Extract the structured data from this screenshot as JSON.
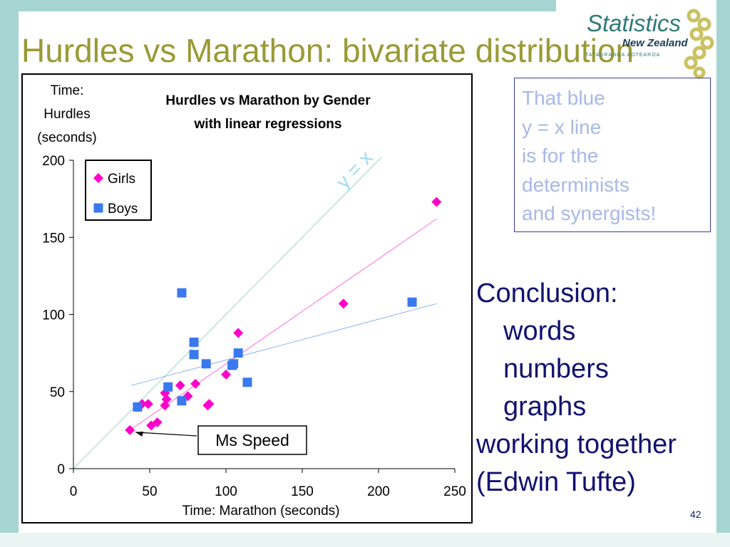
{
  "slide": {
    "title": "Hurdles vs Marathon: bivariate distribution",
    "page_number": "42",
    "band_color": "#a6d4d2",
    "title_color": "#9a9a35"
  },
  "logo": {
    "word": "Statistics",
    "sub": "New Zealand",
    "maori": "TATAURANGA AOTEAROA",
    "icon": "chain-link-logo-icon"
  },
  "note": {
    "lines": [
      "That blue",
      "y = x line",
      "is for the",
      "determinists",
      "and synergists!"
    ],
    "color": "#a8b8e8"
  },
  "conclusion": {
    "lines": [
      "Conclusion:",
      "words",
      "numbers",
      "graphs",
      "working together",
      "(Edwin Tufte)"
    ],
    "color": "#111170"
  },
  "chart_data": {
    "type": "scatter",
    "title": "Hurdles vs Marathon by Gender with linear regressions",
    "title_lines": [
      "Hurdles vs Marathon by Gender",
      "with linear regressions"
    ],
    "ylabel_lines": [
      "Time:",
      "Hurdles",
      "(seconds)"
    ],
    "xlabel": "Time: Marathon (seconds)",
    "xlim": [
      0,
      250
    ],
    "ylim": [
      0,
      200
    ],
    "xticks": [
      0,
      50,
      100,
      150,
      200,
      250
    ],
    "yticks": [
      0,
      50,
      100,
      150,
      200
    ],
    "grid": false,
    "legend_position": "top-left",
    "series": [
      {
        "name": "Girls",
        "marker": "diamond",
        "color": "#ff00cc",
        "points": [
          [
            37,
            25
          ],
          [
            45,
            42
          ],
          [
            49,
            42
          ],
          [
            51,
            28
          ],
          [
            55,
            30
          ],
          [
            60,
            49
          ],
          [
            60,
            41
          ],
          [
            61,
            45
          ],
          [
            70,
            54
          ],
          [
            75,
            47
          ],
          [
            80,
            55
          ],
          [
            88,
            41
          ],
          [
            89,
            42
          ],
          [
            100,
            61
          ],
          [
            108,
            88
          ],
          [
            177,
            107
          ],
          [
            238,
            173
          ]
        ],
        "regression": {
          "x": [
            37,
            238
          ],
          "y": [
            25,
            162
          ]
        }
      },
      {
        "name": "Boys",
        "marker": "square",
        "color": "#3a78ee",
        "points": [
          [
            42,
            40
          ],
          [
            62,
            53
          ],
          [
            71,
            44
          ],
          [
            71,
            114
          ],
          [
            79,
            82
          ],
          [
            79,
            74
          ],
          [
            87,
            68
          ],
          [
            104,
            67
          ],
          [
            105,
            68
          ],
          [
            108,
            75
          ],
          [
            114,
            56
          ],
          [
            222,
            108
          ]
        ],
        "regression": {
          "x": [
            38,
            238
          ],
          "y": [
            54,
            107
          ]
        }
      }
    ],
    "reference_line": {
      "label": "y = x",
      "color": "#9fd4c0",
      "label_color": "#9fdcf0"
    },
    "annotation": {
      "text": "Ms Speed",
      "x": 37,
      "y": 25
    }
  }
}
